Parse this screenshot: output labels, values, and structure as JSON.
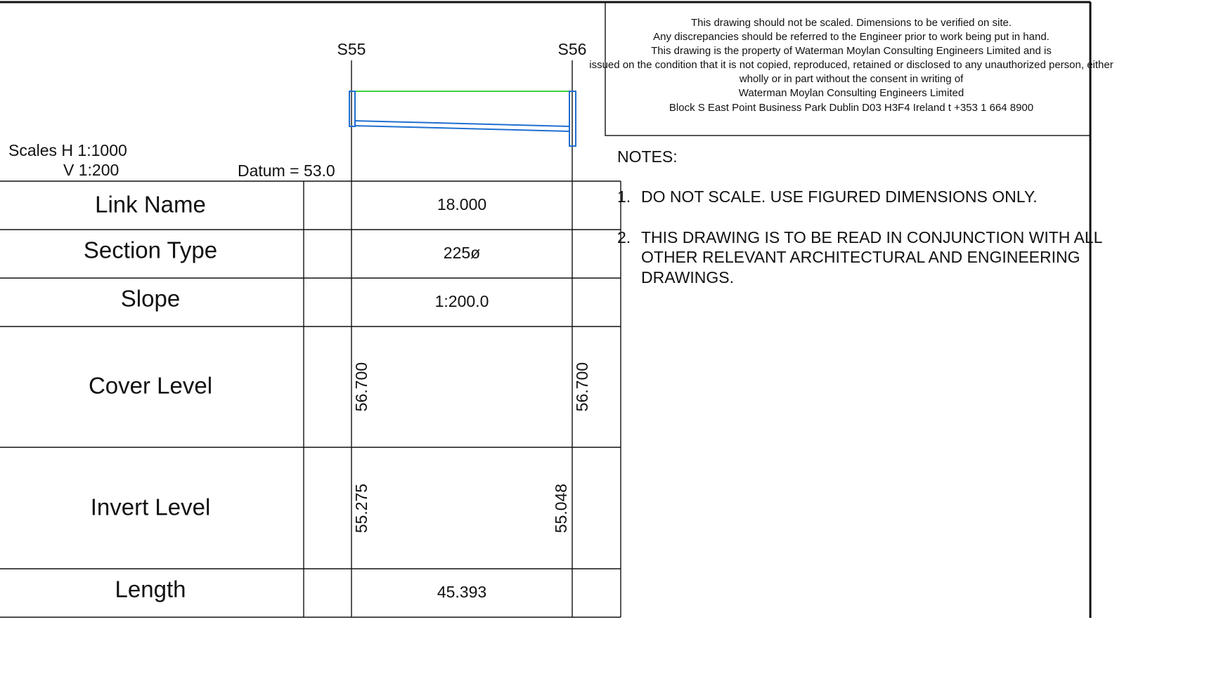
{
  "disclaimer": [
    "This drawing should not be scaled. Dimensions to be verified on site.",
    "Any discrepancies should be referred to the Engineer prior to work being put in hand.",
    "This drawing is the property of Waterman Moylan Consulting Engineers Limited and is",
    "issued on the condition that it is not copied, reproduced, retained or disclosed to any unauthorized person, either",
    "wholly or in part without the consent in writing of",
    "Waterman Moylan Consulting Engineers Limited",
    "Block S   East Point Business Park   Dublin   D03 H3F4   Ireland t +353 1 664 8900"
  ],
  "notes": {
    "title": "NOTES:",
    "items": [
      {
        "number": "1.",
        "lines": [
          "DO NOT SCALE. USE FIGURED DIMENSIONS ONLY."
        ]
      },
      {
        "number": "2.",
        "lines": [
          "THIS DRAWING IS TO BE READ IN CONJUNCTION WITH ALL",
          "OTHER RELEVANT ARCHITECTURAL AND ENGINEERING",
          "DRAWINGS."
        ]
      }
    ]
  },
  "scales": {
    "horizontal": "Scales H 1:1000",
    "vertical": "V 1:200",
    "datum": "Datum = 53.0"
  },
  "nodes": [
    "S55",
    "S56"
  ],
  "table": {
    "rows": [
      {
        "label": "Link Name",
        "value": "18.000"
      },
      {
        "label": "Section Type",
        "value": "225ø"
      },
      {
        "label": "Slope",
        "value": "1:200.0"
      },
      {
        "label": "Cover Level",
        "start": "56.700",
        "end": "56.700"
      },
      {
        "label": "Invert Level",
        "start": "55.275",
        "end": "55.048"
      },
      {
        "label": "Length",
        "value": "45.393"
      }
    ]
  }
}
